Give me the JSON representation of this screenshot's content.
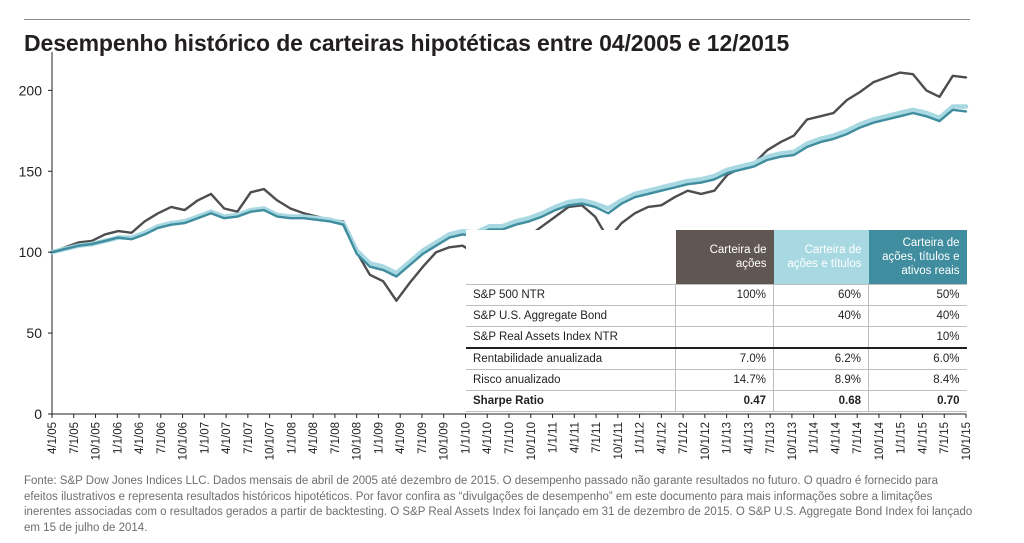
{
  "title": "Desempenho histórico de carteiras hipotéticas entre 04/2005 e 12/2015",
  "chart_data": {
    "type": "line",
    "title": "Desempenho histórico de carteiras hipotéticas entre 04/2005 e 12/2015",
    "xlabel": "",
    "ylabel": "",
    "ylim": [
      0,
      220
    ],
    "y_ticks": [
      0,
      50,
      100,
      150,
      200
    ],
    "grid": false,
    "x_tick_labels": [
      "4/1/05",
      "7/1/05",
      "10/1/05",
      "1/1/06",
      "4/1/06",
      "7/1/06",
      "10/1/06",
      "1/1/07",
      "4/1/07",
      "7/1/07",
      "10/1/07",
      "1/1/08",
      "4/1/08",
      "7/1/08",
      "10/1/08",
      "1/1/09",
      "4/1/09",
      "7/1/09",
      "10/1/09",
      "1/1/10",
      "4/1/10",
      "7/1/10",
      "10/1/10",
      "1/1/11",
      "4/1/11",
      "7/1/11",
      "10/1/11",
      "1/1/12",
      "4/1/12",
      "7/1/12",
      "10/1/12",
      "1/1/13",
      "4/1/13",
      "7/1/13",
      "10/1/13",
      "1/1/14",
      "4/1/14",
      "7/1/14",
      "10/1/14",
      "1/1/15",
      "4/1/15",
      "7/1/15",
      "10/1/15"
    ],
    "series": [
      {
        "name": "Carteira de ações",
        "color": "#4d4d4f",
        "values": [
          100,
          103,
          106,
          107,
          111,
          113,
          112,
          119,
          124,
          128,
          126,
          132,
          136,
          127,
          125,
          137,
          139,
          132,
          127,
          124,
          122,
          120,
          119,
          100,
          86,
          82,
          70,
          81,
          91,
          100,
          103,
          104,
          99,
          107,
          103,
          109,
          110,
          116,
          122,
          128,
          129,
          122,
          108,
          118,
          124,
          128,
          129,
          134,
          138,
          136,
          138,
          148,
          152,
          155,
          163,
          168,
          172,
          182,
          184,
          186,
          194,
          199,
          205,
          208,
          211,
          210,
          200,
          196,
          209,
          208
        ]
      },
      {
        "name": "Carteira de ações e títulos",
        "color": "#a8d9e2",
        "values": [
          100,
          102,
          104,
          105,
          107,
          109,
          109,
          112,
          116,
          118,
          119,
          122,
          125,
          122,
          123,
          126,
          127,
          123,
          122,
          122,
          121,
          120,
          118,
          101,
          93,
          91,
          87,
          94,
          101,
          106,
          111,
          113,
          112,
          116,
          116,
          119,
          121,
          124,
          128,
          131,
          132,
          130,
          127,
          132,
          136,
          138,
          140,
          142,
          144,
          145,
          147,
          151,
          153,
          155,
          159,
          161,
          162,
          167,
          170,
          172,
          175,
          179,
          182,
          184,
          186,
          188,
          186,
          183,
          190,
          190
        ]
      },
      {
        "name": "Carteira de ações, títulos e ativos reais",
        "color": "#3f8d9e",
        "values": [
          100,
          102,
          104,
          105,
          107,
          109,
          108,
          111,
          115,
          117,
          118,
          121,
          124,
          121,
          122,
          125,
          126,
          122,
          121,
          121,
          120,
          119,
          117,
          99,
          91,
          89,
          85,
          92,
          99,
          104,
          109,
          111,
          110,
          114,
          114,
          117,
          119,
          122,
          126,
          129,
          130,
          128,
          124,
          130,
          134,
          136,
          138,
          140,
          142,
          143,
          145,
          149,
          151,
          153,
          157,
          159,
          160,
          165,
          168,
          170,
          173,
          177,
          180,
          182,
          184,
          186,
          184,
          181,
          188,
          187
        ]
      }
    ]
  },
  "table": {
    "headers": [
      "Carteira de ações",
      "Carteira de ações e títulos",
      "Carteira de ações, títulos e ativos reais"
    ],
    "rows": [
      {
        "label": "S&P 500 NTR",
        "values": [
          "100%",
          "60%",
          "50%"
        ]
      },
      {
        "label": "S&P U.S. Aggregate Bond",
        "values": [
          "",
          "40%",
          "40%"
        ]
      },
      {
        "label": "S&P Real Assets Index NTR",
        "values": [
          "",
          "",
          "10%"
        ]
      },
      {
        "label": "Rentabilidade anualizada",
        "values": [
          "7.0%",
          "6.2%",
          "6.0%"
        ]
      },
      {
        "label": "Risco anualizado",
        "values": [
          "14.7%",
          "8.9%",
          "8.4%"
        ]
      },
      {
        "label": "Sharpe Ratio",
        "values": [
          "0.47",
          "0.68",
          "0.70"
        ]
      }
    ]
  },
  "source_note": "Fonte: S&P Dow Jones Indices LLC. Dados mensais de abril de 2005 até dezembro de 2015. O desempenho passado não garante resultados no futuro. O quadro é fornecido para efeitos ilustrativos e representa resultados históricos hipotéticos. Por favor confira as “divulgações de desempenho” em este documento para mais informações sobre a limitações inerentes associadas com o resultados gerados a partir de backtesting. O S&P Real Assets Index foi lançado em 31 de dezembro de 2015. O S&P U.S. Aggregate Bond Index foi lançado em 15 de julho de 2014."
}
